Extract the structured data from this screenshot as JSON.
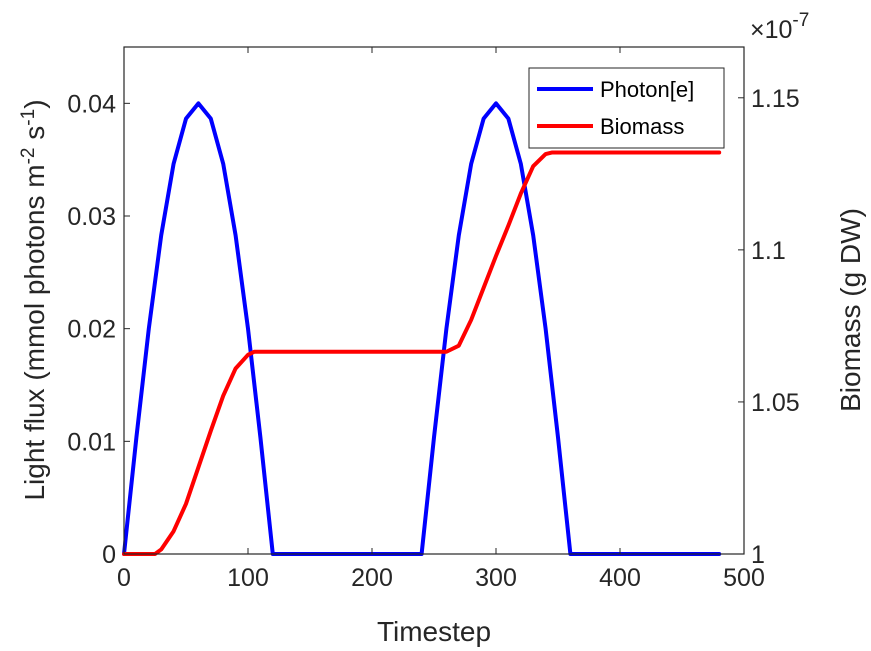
{
  "chart_data": {
    "type": "line",
    "xlabel": "Timestep",
    "ylabel_left": "Light flux (mmol photons m",
    "ylabel_left_sup1": "-2",
    "ylabel_left_mid": " s",
    "ylabel_left_sup2": "-1",
    "ylabel_left_end": ")",
    "ylabel_right": "Biomass (g DW)",
    "right_axis_multiplier": "×10",
    "right_axis_exponent": "-7",
    "xlim": [
      0,
      500
    ],
    "ylim_left": [
      0,
      0.045
    ],
    "ylim_right": [
      1.0,
      1.1667
    ],
    "x_ticks": [
      "0",
      "100",
      "200",
      "300",
      "400",
      "500"
    ],
    "y_left_ticks": [
      "0",
      "0.01",
      "0.02",
      "0.03",
      "0.04"
    ],
    "y_right_ticks": [
      "1",
      "1.05",
      "1.1",
      "1.15"
    ],
    "x_tick_values": [
      0,
      100,
      200,
      300,
      400,
      500
    ],
    "y_left_tick_values": [
      0,
      0.01,
      0.02,
      0.03,
      0.04
    ],
    "y_right_tick_values": [
      1.0,
      1.05,
      1.1,
      1.15
    ],
    "legend_location": "top-right",
    "series": [
      {
        "name": "Photon[e]",
        "axis": "left",
        "color": "#0000ff",
        "x": [
          0,
          10,
          20,
          30,
          40,
          50,
          60,
          70,
          80,
          90,
          100,
          110,
          120,
          130,
          200,
          240,
          250,
          260,
          270,
          280,
          290,
          300,
          310,
          320,
          330,
          340,
          350,
          360,
          370,
          480
        ],
        "y": [
          0,
          0.01035,
          0.02,
          0.02828,
          0.03464,
          0.03864,
          0.04,
          0.03864,
          0.03464,
          0.02828,
          0.02,
          0.01035,
          0,
          0,
          0,
          0,
          0.01035,
          0.02,
          0.02828,
          0.03464,
          0.03864,
          0.04,
          0.03864,
          0.03464,
          0.02828,
          0.02,
          0.01035,
          0,
          0,
          0
        ]
      },
      {
        "name": "Biomass",
        "axis": "right",
        "color": "#ff0000",
        "x": [
          0,
          10,
          20,
          25,
          30,
          40,
          50,
          60,
          70,
          80,
          90,
          100,
          105,
          150,
          200,
          260,
          270,
          280,
          290,
          300,
          310,
          320,
          330,
          340,
          345,
          400,
          480
        ],
        "y": [
          1.0,
          1.0,
          1.0,
          1.0,
          1.0015,
          1.0075,
          1.0165,
          1.0285,
          1.0405,
          1.052,
          1.061,
          1.0655,
          1.0665,
          1.0665,
          1.0665,
          1.0665,
          1.0685,
          1.077,
          1.0875,
          1.098,
          1.108,
          1.1185,
          1.1275,
          1.1315,
          1.132,
          1.132,
          1.132
        ]
      }
    ]
  }
}
